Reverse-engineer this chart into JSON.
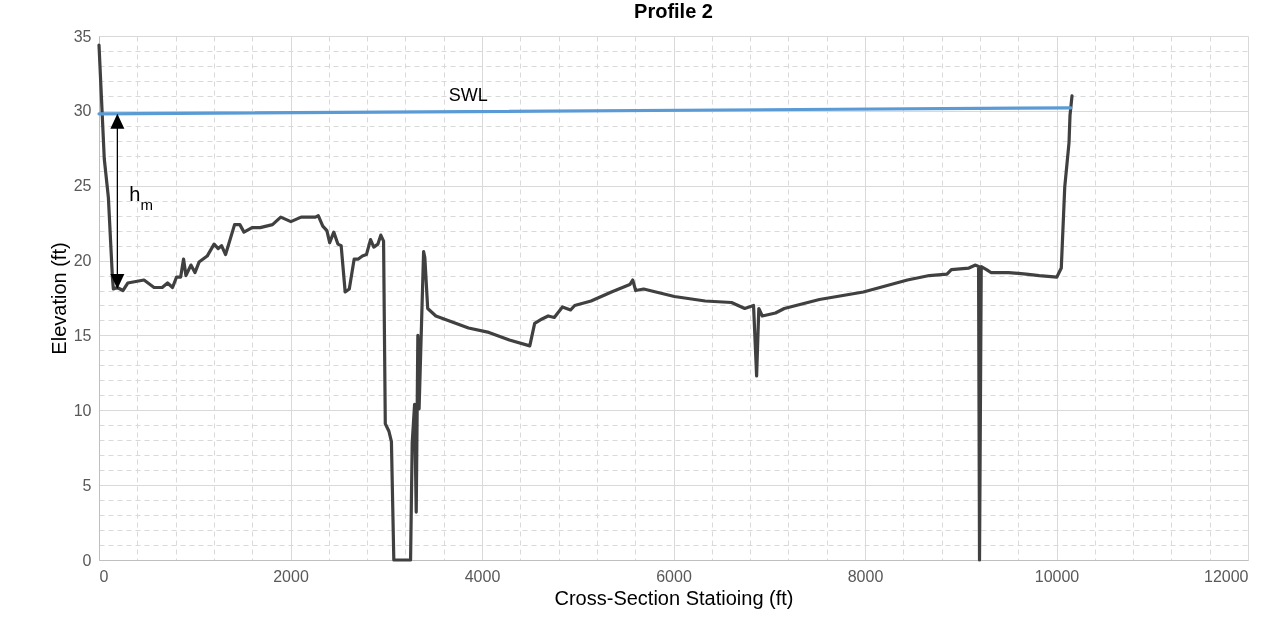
{
  "chart_data": {
    "type": "line",
    "title": "Profile 2",
    "xlabel": "Cross-Section Statioing (ft)",
    "ylabel": "Elevation (ft)",
    "xlim": [
      0,
      12000
    ],
    "ylim": [
      0,
      35
    ],
    "xticks": [
      0,
      {
        "value": 400,
        "label": null
      },
      {
        "value": 800,
        "label": null
      },
      {
        "value": 1200,
        "label": null
      },
      {
        "value": 1600,
        "label": null
      },
      2000,
      {
        "value": 2400,
        "label": null
      },
      {
        "value": 2800,
        "label": null
      },
      {
        "value": 3200,
        "label": null
      },
      {
        "value": 3600,
        "label": null
      },
      4000,
      {
        "value": 4400,
        "label": null
      },
      {
        "value": 4800,
        "label": null
      },
      {
        "value": 5200,
        "label": null
      },
      {
        "value": 5600,
        "label": null
      },
      6000,
      {
        "value": 6400,
        "label": null
      },
      {
        "value": 6800,
        "label": null
      },
      {
        "value": 7200,
        "label": null
      },
      {
        "value": 7600,
        "label": null
      },
      8000,
      {
        "value": 8400,
        "label": null
      },
      {
        "value": 8800,
        "label": null
      },
      {
        "value": 9200,
        "label": null
      },
      {
        "value": 9600,
        "label": null
      },
      10000,
      {
        "value": 10400,
        "label": null
      },
      {
        "value": 10800,
        "label": null
      },
      {
        "value": 11200,
        "label": null
      },
      {
        "value": 11600,
        "label": null
      },
      12000
    ],
    "yticks": [
      0,
      {
        "value": 1,
        "label": null
      },
      {
        "value": 2,
        "label": null
      },
      {
        "value": 3,
        "label": null
      },
      {
        "value": 4,
        "label": null
      },
      5,
      {
        "value": 6,
        "label": null
      },
      {
        "value": 7,
        "label": null
      },
      {
        "value": 8,
        "label": null
      },
      {
        "value": 9,
        "label": null
      },
      10,
      {
        "value": 11,
        "label": null
      },
      {
        "value": 12,
        "label": null
      },
      {
        "value": 13,
        "label": null
      },
      {
        "value": 14,
        "label": null
      },
      15,
      {
        "value": 16,
        "label": null
      },
      {
        "value": 17,
        "label": null
      },
      {
        "value": 18,
        "label": null
      },
      {
        "value": 19,
        "label": null
      },
      20,
      {
        "value": 21,
        "label": null
      },
      {
        "value": 22,
        "label": null
      },
      {
        "value": 23,
        "label": null
      },
      {
        "value": 24,
        "label": null
      },
      25,
      {
        "value": 26,
        "label": null
      },
      {
        "value": 27,
        "label": null
      },
      {
        "value": 28,
        "label": null
      },
      {
        "value": 29,
        "label": null
      },
      30,
      {
        "value": 31,
        "label": null
      },
      {
        "value": 32,
        "label": null
      },
      {
        "value": 33,
        "label": null
      },
      {
        "value": 34,
        "label": null
      },
      35
    ],
    "grid": true,
    "series": [
      {
        "color": "#404040",
        "x": [
          0,
          55,
          98,
          140,
          150,
          190,
          250,
          300,
          470,
          575,
          660,
          716,
          768,
          810,
          853,
          883,
          908,
          960,
          1002,
          1045,
          1130,
          1202,
          1245,
          1280,
          1322,
          1416,
          1471,
          1514,
          1599,
          1684,
          1812,
          1898,
          2004,
          2111,
          2196,
          2260,
          2290,
          2337,
          2380,
          2409,
          2452,
          2495,
          2529,
          2571,
          2614,
          2665,
          2708,
          2751,
          2793,
          2836,
          2870,
          2913,
          2943,
          2972,
          2990,
          3028,
          3054,
          3079,
          3254,
          3271,
          3296,
          3313,
          3330,
          3343,
          3390,
          3403,
          3433,
          3518,
          3646,
          3859,
          4072,
          4286,
          4499,
          4550,
          4627,
          4691,
          4755,
          4840,
          4925,
          4968,
          5139,
          5352,
          5544,
          5574,
          5605,
          5688,
          6009,
          6331,
          6606,
          6744,
          6836,
          6868,
          6891,
          6927,
          7065,
          7157,
          7524,
          7983,
          8443,
          8672,
          8856,
          8902,
          9085,
          9154,
          9186,
          9196,
          9214,
          9269,
          9315,
          9499,
          9683,
          9820,
          10004,
          10050,
          10086,
          10131,
          10141,
          10162
        ],
        "values": [
          34.4,
          26.8,
          24.2,
          18.9,
          18.1,
          18.2,
          18.0,
          18.5,
          18.7,
          18.2,
          18.2,
          18.5,
          18.2,
          18.9,
          18.9,
          20.1,
          19.0,
          19.7,
          19.2,
          19.9,
          20.3,
          21.1,
          20.8,
          21.0,
          20.4,
          22.4,
          22.4,
          21.9,
          22.2,
          22.2,
          22.4,
          22.9,
          22.6,
          22.9,
          22.9,
          22.9,
          23.0,
          22.3,
          22.0,
          21.2,
          21.9,
          21.1,
          21.0,
          17.9,
          18.1,
          20.1,
          20.1,
          20.3,
          20.4,
          21.4,
          20.9,
          21.1,
          21.7,
          21.3,
          9.1,
          8.6,
          7.9,
          0,
          0,
          7.8,
          10.4,
          3.2,
          15.0,
          10.1,
          20.6,
          20.2,
          16.8,
          16.3,
          16.0,
          15.5,
          15.2,
          14.7,
          14.3,
          15.8,
          16.1,
          16.3,
          16.2,
          16.9,
          16.7,
          17.0,
          17.3,
          17.9,
          18.4,
          18.7,
          18.0,
          18.1,
          17.6,
          17.3,
          17.2,
          16.8,
          17.0,
          12.3,
          16.8,
          16.3,
          16.5,
          16.8,
          17.4,
          17.9,
          18.7,
          19.0,
          19.1,
          19.4,
          19.5,
          19.7,
          19.6,
          0,
          19.6,
          19.4,
          19.2,
          19.2,
          19.1,
          19.0,
          18.9,
          19.5,
          24.9,
          27.9,
          29.7,
          31.0
        ]
      },
      {
        "name": "SWL",
        "color": "#5b9bd5",
        "x": [
          0,
          10150
        ],
        "values": [
          29.8,
          30.2
        ]
      }
    ],
    "annotations": [
      "h$_{m}$"
    ]
  }
}
